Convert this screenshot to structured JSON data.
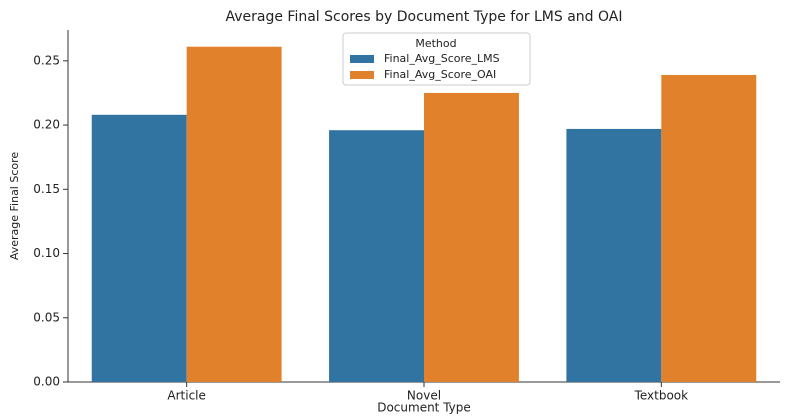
{
  "chart_data": {
    "type": "bar",
    "title": "Average Final Scores by Document Type for LMS and OAI",
    "x_label": "Document Type",
    "y_label": "Average Final Score",
    "legend_title": "Method",
    "legend_position": "upper center",
    "categories": [
      "Article",
      "Novel",
      "Textbook"
    ],
    "series": [
      {
        "name": "Final_Avg_Score_LMS",
        "color": "#3274a1",
        "values": [
          0.208,
          0.196,
          0.197
        ]
      },
      {
        "name": "Final_Avg_Score_OAI",
        "color": "#e1812c",
        "values": [
          0.261,
          0.225,
          0.239
        ]
      }
    ],
    "ylim": [
      0,
      0.274
    ],
    "yticks": [
      {
        "value": 0,
        "label": "0.00"
      },
      0.05,
      {
        "value": 0.1,
        "label": "0.10"
      },
      0.15,
      {
        "value": 0.2,
        "label": "0.20"
      },
      0.25
    ],
    "grid": false
  }
}
